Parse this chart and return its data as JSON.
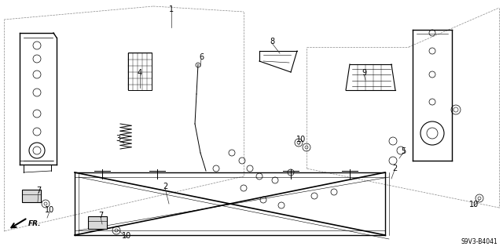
{
  "bg_color": "#ffffff",
  "line_color": "#000000",
  "text_color": "#000000",
  "diagram_code": "S9V3-B4041",
  "font_size_label": 7,
  "font_size_code": 5.5,
  "labels": [
    [
      "1",
      218,
      12
    ],
    [
      "2",
      210,
      238
    ],
    [
      "2",
      502,
      215
    ],
    [
      "3",
      150,
      177
    ],
    [
      "4",
      178,
      93
    ],
    [
      "5",
      513,
      193
    ],
    [
      "6",
      256,
      73
    ],
    [
      "7",
      49,
      243
    ],
    [
      "7",
      128,
      275
    ],
    [
      "8",
      346,
      53
    ],
    [
      "9",
      463,
      93
    ],
    [
      "10",
      63,
      268
    ],
    [
      "10",
      161,
      301
    ],
    [
      "10",
      383,
      178
    ],
    [
      "10",
      603,
      261
    ]
  ]
}
